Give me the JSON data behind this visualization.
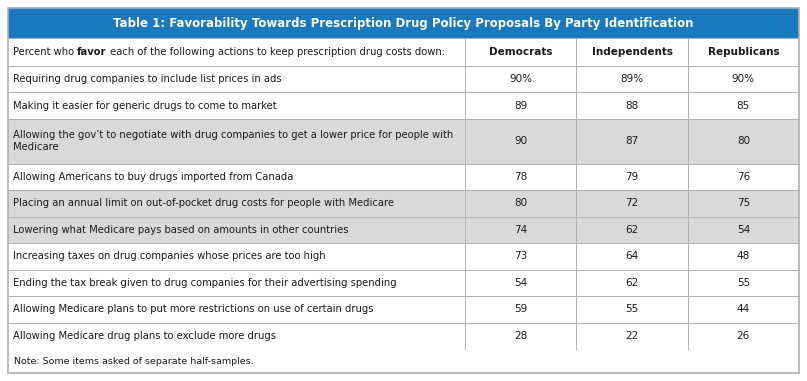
{
  "title": "Table 1: Favorability Towards Prescription Drug Policy Proposals By Party Identification",
  "title_bg": "#1a79be",
  "title_color": "#ffffff",
  "header_intro_parts": [
    {
      "text": "Percent who ",
      "bold": false
    },
    {
      "text": "favor",
      "bold": true
    },
    {
      "text": " each of the following actions to keep prescription drug costs down:",
      "bold": false
    }
  ],
  "col_headers": [
    "Democrats",
    "Independents",
    "Republicans"
  ],
  "rows": [
    {
      "label": [
        "Requiring drug companies to include list prices in ads"
      ],
      "values": [
        "90%",
        "89%",
        "90%"
      ],
      "shaded": false
    },
    {
      "label": [
        "Making it easier for generic drugs to come to market"
      ],
      "values": [
        "89",
        "88",
        "85"
      ],
      "shaded": false
    },
    {
      "label": [
        "Allowing the gov’t to negotiate with drug companies to get a lower price for people with",
        "Medicare"
      ],
      "values": [
        "90",
        "87",
        "80"
      ],
      "shaded": true
    },
    {
      "label": [
        "Allowing Americans to buy drugs imported from Canada"
      ],
      "values": [
        "78",
        "79",
        "76"
      ],
      "shaded": false
    },
    {
      "label": [
        "Placing an annual limit on out-of-pocket drug costs for people with Medicare"
      ],
      "values": [
        "80",
        "72",
        "75"
      ],
      "shaded": true
    },
    {
      "label": [
        "Lowering what Medicare pays based on amounts in other countries"
      ],
      "values": [
        "74",
        "62",
        "54"
      ],
      "shaded": true
    },
    {
      "label": [
        "Increasing taxes on drug companies whose prices are too high"
      ],
      "values": [
        "73",
        "64",
        "48"
      ],
      "shaded": false
    },
    {
      "label": [
        "Ending the tax break given to drug companies for their advertising spending"
      ],
      "values": [
        "54",
        "62",
        "55"
      ],
      "shaded": false
    },
    {
      "label": [
        "Allowing Medicare plans to put more restrictions on use of certain drugs"
      ],
      "values": [
        "59",
        "55",
        "44"
      ],
      "shaded": false
    },
    {
      "label": [
        "Allowing Medicare drug plans to exclude more drugs"
      ],
      "values": [
        "28",
        "22",
        "26"
      ],
      "shaded": false
    }
  ],
  "note": "Note: Some items asked of separate half-samples.",
  "shaded_color": "#d9d9d9",
  "white_color": "#ffffff",
  "border_color": "#b0b0b0",
  "text_color": "#1a1a1a",
  "bg_color": "#ffffff",
  "fig_width": 8.07,
  "fig_height": 3.81,
  "dpi": 100
}
